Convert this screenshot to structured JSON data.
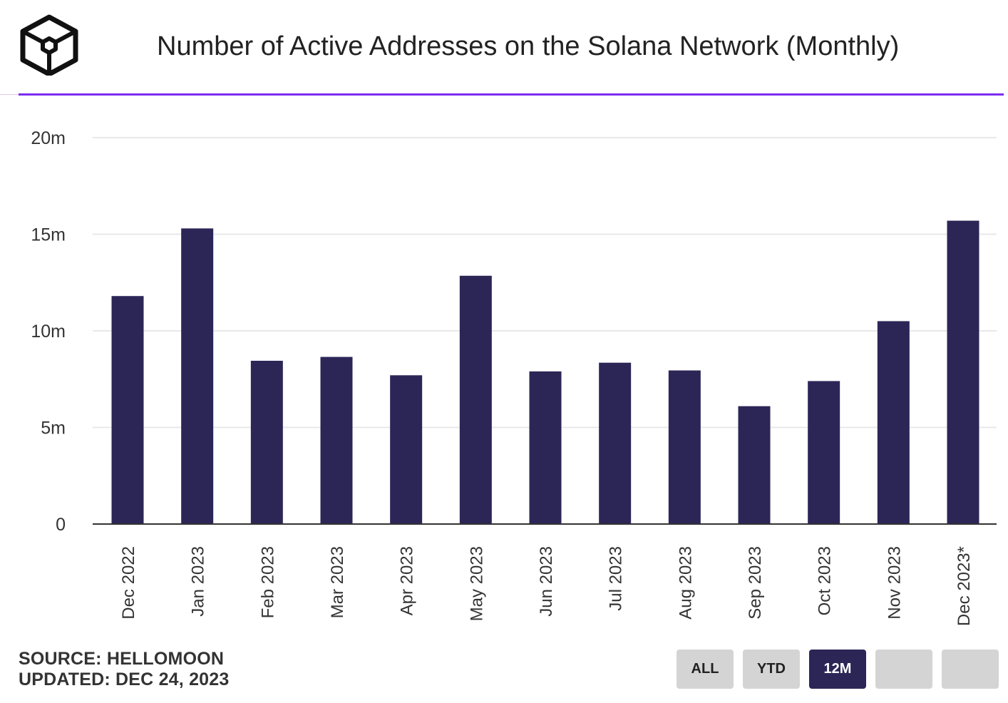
{
  "header": {
    "title": "Number of Active Addresses on the Solana Network (Monthly)",
    "logo_icon": "hexagon-cube-logo-icon"
  },
  "colors": {
    "bar": "#2c2657",
    "accent_rule": "#7b2cf0",
    "grid": "#e8e8e8",
    "axis": "#333333",
    "button_bg": "#d4d4d4",
    "button_active_bg": "#2c2657"
  },
  "chart_data": {
    "type": "bar",
    "title": "Number of Active Addresses on the Solana Network (Monthly)",
    "xlabel": "",
    "ylabel": "",
    "ylim": [
      0,
      20000000
    ],
    "yticks": [
      0,
      5000000,
      10000000,
      15000000,
      20000000
    ],
    "ytick_labels": [
      "0",
      "5m",
      "10m",
      "15m",
      "20m"
    ],
    "grid": true,
    "categories": [
      "Dec 2022",
      "Jan 2023",
      "Feb 2023",
      "Mar 2023",
      "Apr 2023",
      "May 2023",
      "Jun 2023",
      "Jul 2023",
      "Aug 2023",
      "Sep 2023",
      "Oct 2023",
      "Nov 2023",
      "Dec 2023*"
    ],
    "values": [
      11800000,
      15300000,
      8450000,
      8650000,
      7700000,
      12850000,
      7900000,
      8350000,
      7950000,
      6100000,
      7400000,
      10500000,
      15700000
    ]
  },
  "footer": {
    "source": "SOURCE: HELLOMOON",
    "updated": "UPDATED: DEC 24, 2023"
  },
  "range_buttons": [
    {
      "label": "ALL",
      "active": false
    },
    {
      "label": "YTD",
      "active": false
    },
    {
      "label": "12M",
      "active": true
    },
    {
      "label": "",
      "active": false
    },
    {
      "label": "",
      "active": false
    }
  ]
}
